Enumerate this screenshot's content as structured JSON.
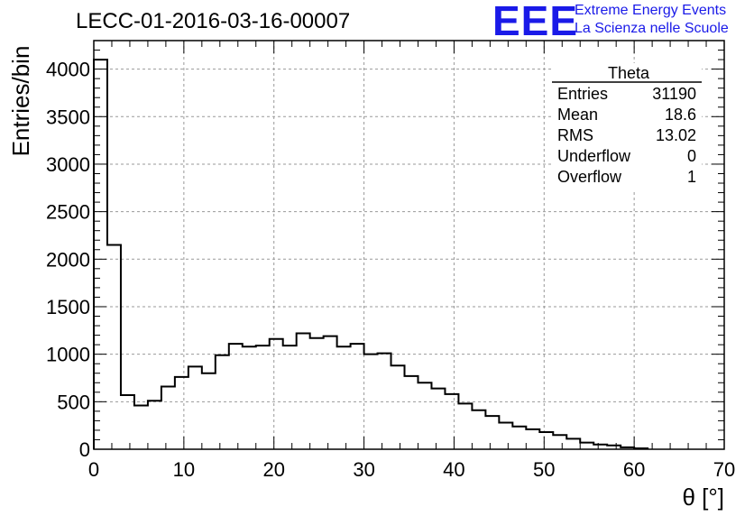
{
  "title": "LECC-01-2016-03-16-00007",
  "logo": {
    "mark": "EEE",
    "line1": "Extreme Energy Events",
    "line2": "La Scienza nelle Scuole",
    "color": "#1a1ae8"
  },
  "stats_box": {
    "name": "Theta",
    "rows": [
      {
        "label": "Entries",
        "value": "31190"
      },
      {
        "label": "Mean",
        "value": "18.6"
      },
      {
        "label": "RMS",
        "value": "13.02"
      },
      {
        "label": "Underflow",
        "value": "0"
      },
      {
        "label": "Overflow",
        "value": "1"
      }
    ]
  },
  "chart_data": {
    "type": "histogram",
    "xlabel": "θ [°]",
    "ylabel": "Entries/bin",
    "xlim": [
      0,
      70
    ],
    "ylim": [
      0,
      4300
    ],
    "grid": true,
    "x_ticks": [
      0,
      10,
      20,
      30,
      40,
      50,
      60,
      70
    ],
    "y_ticks": [
      0,
      500,
      1000,
      1500,
      2000,
      2500,
      3000,
      3500,
      4000
    ],
    "bin_width": 1.5,
    "bin_edges_start": 0,
    "values": [
      4100,
      2150,
      570,
      460,
      510,
      660,
      760,
      870,
      800,
      990,
      1110,
      1080,
      1090,
      1160,
      1090,
      1220,
      1170,
      1190,
      1080,
      1110,
      1000,
      1010,
      880,
      770,
      700,
      640,
      580,
      480,
      410,
      350,
      280,
      240,
      210,
      180,
      150,
      110,
      70,
      50,
      40,
      20,
      10
    ]
  }
}
